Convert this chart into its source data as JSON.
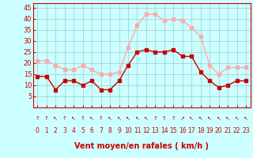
{
  "hours": [
    0,
    1,
    2,
    3,
    4,
    5,
    6,
    7,
    8,
    9,
    10,
    11,
    12,
    13,
    14,
    15,
    16,
    17,
    18,
    19,
    20,
    21,
    22,
    23
  ],
  "wind_avg": [
    14,
    14,
    8,
    12,
    12,
    10,
    12,
    8,
    8,
    12,
    19,
    25,
    26,
    25,
    25,
    26,
    23,
    23,
    16,
    12,
    9,
    10,
    12,
    12
  ],
  "wind_gust": [
    21,
    21,
    19,
    17,
    17,
    19,
    17,
    15,
    15,
    16,
    27,
    37,
    42,
    42,
    39,
    40,
    39,
    36,
    32,
    19,
    15,
    18,
    18,
    18
  ],
  "avg_color": "#cc0000",
  "gust_color": "#ffaaaa",
  "bg_color": "#ccffff",
  "grid_color": "#99cccc",
  "xlabel": "Vent moyen/en rafales ( km/h )",
  "xlabel_color": "#cc0000",
  "tick_color": "#cc0000",
  "ylim": [
    0,
    47
  ],
  "yticks": [
    5,
    10,
    15,
    20,
    25,
    30,
    35,
    40,
    45
  ],
  "marker_size": 2.5,
  "linewidth": 1.0
}
